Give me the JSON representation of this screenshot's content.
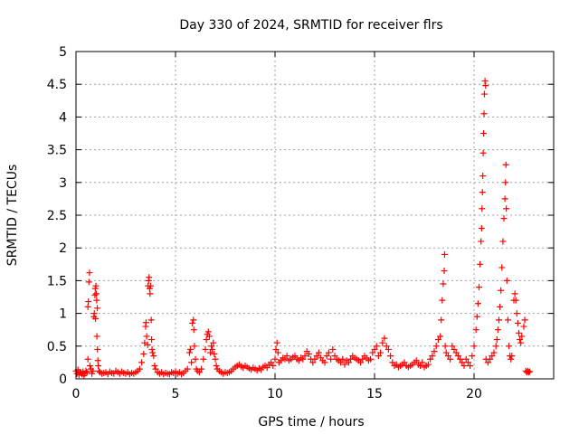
{
  "chart_data": {
    "type": "scatter",
    "title": "Day 330 of 2024, SRMTID for receiver flrs",
    "xlabel": "GPS time / hours",
    "ylabel": "SRMTID / TECUs",
    "xlim": [
      0,
      24
    ],
    "ylim": [
      0,
      5
    ],
    "xticks": [
      0,
      5,
      10,
      15,
      20
    ],
    "yticks": [
      0,
      0.5,
      1,
      1.5,
      2,
      2.5,
      3,
      3.5,
      4,
      4.5,
      5
    ],
    "grid": true,
    "marker": "plus",
    "marker_color": "#ff0000",
    "series": [
      {
        "points": [
          [
            0.0,
            0.12
          ],
          [
            0.05,
            0.08
          ],
          [
            0.1,
            0.14
          ],
          [
            0.15,
            0.06
          ],
          [
            0.2,
            0.1
          ],
          [
            0.25,
            0.09
          ],
          [
            0.3,
            0.07
          ],
          [
            0.35,
            0.11
          ],
          [
            0.4,
            0.05
          ],
          [
            0.45,
            0.08
          ],
          [
            0.5,
            0.12
          ],
          [
            0.55,
            0.1
          ],
          [
            0.6,
            0.3
          ],
          [
            0.6,
            1.1
          ],
          [
            0.62,
            1.18
          ],
          [
            0.65,
            1.48
          ],
          [
            0.68,
            1.62
          ],
          [
            0.7,
            0.2
          ],
          [
            0.75,
            0.15
          ],
          [
            0.8,
            0.08
          ],
          [
            0.85,
            0.12
          ],
          [
            0.9,
            0.95
          ],
          [
            0.92,
            1.0
          ],
          [
            0.95,
            1.28
          ],
          [
            0.97,
            1.38
          ],
          [
            0.98,
            0.92
          ],
          [
            1.0,
            1.42
          ],
          [
            1.02,
            1.3
          ],
          [
            1.04,
            1.2
          ],
          [
            1.05,
            0.65
          ],
          [
            1.07,
            1.08
          ],
          [
            1.08,
            0.45
          ],
          [
            1.1,
            0.28
          ],
          [
            1.12,
            0.2
          ],
          [
            1.15,
            0.12
          ],
          [
            1.2,
            0.1
          ],
          [
            1.3,
            0.08
          ],
          [
            1.4,
            0.09
          ],
          [
            1.5,
            0.1
          ],
          [
            1.6,
            0.07
          ],
          [
            1.7,
            0.11
          ],
          [
            1.8,
            0.09
          ],
          [
            1.9,
            0.08
          ],
          [
            2.0,
            0.12
          ],
          [
            2.1,
            0.1
          ],
          [
            2.2,
            0.08
          ],
          [
            2.3,
            0.11
          ],
          [
            2.4,
            0.09
          ],
          [
            2.5,
            0.08
          ],
          [
            2.6,
            0.1
          ],
          [
            2.7,
            0.07
          ],
          [
            2.8,
            0.09
          ],
          [
            2.9,
            0.08
          ],
          [
            3.0,
            0.1
          ],
          [
            3.1,
            0.12
          ],
          [
            3.2,
            0.15
          ],
          [
            3.3,
            0.25
          ],
          [
            3.4,
            0.38
          ],
          [
            3.45,
            0.55
          ],
          [
            3.5,
            0.8
          ],
          [
            3.52,
            0.86
          ],
          [
            3.55,
            0.65
          ],
          [
            3.6,
            0.52
          ],
          [
            3.62,
            1.42
          ],
          [
            3.65,
            1.5
          ],
          [
            3.67,
            1.55
          ],
          [
            3.7,
            1.38
          ],
          [
            3.72,
            1.3
          ],
          [
            3.75,
            1.42
          ],
          [
            3.78,
            0.9
          ],
          [
            3.8,
            0.6
          ],
          [
            3.82,
            0.45
          ],
          [
            3.85,
            0.4
          ],
          [
            3.9,
            0.35
          ],
          [
            3.95,
            0.2
          ],
          [
            4.0,
            0.15
          ],
          [
            4.1,
            0.1
          ],
          [
            4.2,
            0.08
          ],
          [
            4.3,
            0.1
          ],
          [
            4.4,
            0.07
          ],
          [
            4.5,
            0.09
          ],
          [
            4.6,
            0.08
          ],
          [
            4.7,
            0.07
          ],
          [
            4.8,
            0.1
          ],
          [
            4.9,
            0.09
          ],
          [
            5.0,
            0.11
          ],
          [
            5.1,
            0.08
          ],
          [
            5.2,
            0.1
          ],
          [
            5.3,
            0.07
          ],
          [
            5.4,
            0.09
          ],
          [
            5.5,
            0.12
          ],
          [
            5.6,
            0.15
          ],
          [
            5.7,
            0.4
          ],
          [
            5.75,
            0.45
          ],
          [
            5.8,
            0.25
          ],
          [
            5.85,
            0.85
          ],
          [
            5.9,
            0.9
          ],
          [
            5.92,
            0.75
          ],
          [
            5.95,
            0.5
          ],
          [
            6.0,
            0.3
          ],
          [
            6.05,
            0.15
          ],
          [
            6.1,
            0.12
          ],
          [
            6.2,
            0.1
          ],
          [
            6.3,
            0.15
          ],
          [
            6.4,
            0.3
          ],
          [
            6.5,
            0.45
          ],
          [
            6.55,
            0.6
          ],
          [
            6.6,
            0.68
          ],
          [
            6.65,
            0.72
          ],
          [
            6.7,
            0.65
          ],
          [
            6.75,
            0.4
          ],
          [
            6.8,
            0.5
          ],
          [
            6.85,
            0.45
          ],
          [
            6.9,
            0.55
          ],
          [
            6.95,
            0.38
          ],
          [
            7.0,
            0.3
          ],
          [
            7.05,
            0.2
          ],
          [
            7.1,
            0.15
          ],
          [
            7.2,
            0.12
          ],
          [
            7.3,
            0.1
          ],
          [
            7.4,
            0.08
          ],
          [
            7.5,
            0.1
          ],
          [
            7.6,
            0.09
          ],
          [
            7.7,
            0.1
          ],
          [
            7.8,
            0.12
          ],
          [
            7.9,
            0.15
          ],
          [
            8.0,
            0.18
          ],
          [
            8.1,
            0.2
          ],
          [
            8.2,
            0.22
          ],
          [
            8.3,
            0.19
          ],
          [
            8.4,
            0.17
          ],
          [
            8.5,
            0.2
          ],
          [
            8.6,
            0.18
          ],
          [
            8.7,
            0.16
          ],
          [
            8.8,
            0.14
          ],
          [
            8.9,
            0.17
          ],
          [
            9.0,
            0.15
          ],
          [
            9.1,
            0.13
          ],
          [
            9.2,
            0.16
          ],
          [
            9.3,
            0.14
          ],
          [
            9.4,
            0.18
          ],
          [
            9.5,
            0.2
          ],
          [
            9.6,
            0.17
          ],
          [
            9.7,
            0.22
          ],
          [
            9.8,
            0.25
          ],
          [
            9.9,
            0.2
          ],
          [
            10.0,
            0.3
          ],
          [
            10.05,
            0.45
          ],
          [
            10.1,
            0.55
          ],
          [
            10.15,
            0.4
          ],
          [
            10.2,
            0.25
          ],
          [
            10.3,
            0.28
          ],
          [
            10.4,
            0.32
          ],
          [
            10.5,
            0.3
          ],
          [
            10.6,
            0.35
          ],
          [
            10.7,
            0.28
          ],
          [
            10.8,
            0.3
          ],
          [
            10.9,
            0.33
          ],
          [
            11.0,
            0.35
          ],
          [
            11.1,
            0.3
          ],
          [
            11.2,
            0.28
          ],
          [
            11.3,
            0.32
          ],
          [
            11.4,
            0.3
          ],
          [
            11.5,
            0.35
          ],
          [
            11.6,
            0.42
          ],
          [
            11.7,
            0.38
          ],
          [
            11.8,
            0.3
          ],
          [
            11.9,
            0.25
          ],
          [
            12.0,
            0.3
          ],
          [
            12.1,
            0.35
          ],
          [
            12.2,
            0.4
          ],
          [
            12.3,
            0.32
          ],
          [
            12.4,
            0.28
          ],
          [
            12.5,
            0.25
          ],
          [
            12.6,
            0.35
          ],
          [
            12.7,
            0.4
          ],
          [
            12.8,
            0.3
          ],
          [
            12.9,
            0.45
          ],
          [
            13.0,
            0.35
          ],
          [
            13.1,
            0.3
          ],
          [
            13.2,
            0.28
          ],
          [
            13.3,
            0.25
          ],
          [
            13.4,
            0.3
          ],
          [
            13.5,
            0.22
          ],
          [
            13.6,
            0.28
          ],
          [
            13.7,
            0.25
          ],
          [
            13.8,
            0.3
          ],
          [
            13.9,
            0.35
          ],
          [
            14.0,
            0.32
          ],
          [
            14.1,
            0.3
          ],
          [
            14.2,
            0.28
          ],
          [
            14.3,
            0.25
          ],
          [
            14.4,
            0.3
          ],
          [
            14.5,
            0.35
          ],
          [
            14.6,
            0.32
          ],
          [
            14.7,
            0.28
          ],
          [
            14.8,
            0.3
          ],
          [
            14.9,
            0.4
          ],
          [
            15.0,
            0.45
          ],
          [
            15.1,
            0.5
          ],
          [
            15.2,
            0.35
          ],
          [
            15.3,
            0.4
          ],
          [
            15.4,
            0.55
          ],
          [
            15.5,
            0.62
          ],
          [
            15.6,
            0.5
          ],
          [
            15.7,
            0.45
          ],
          [
            15.8,
            0.35
          ],
          [
            15.9,
            0.25
          ],
          [
            16.0,
            0.2
          ],
          [
            16.1,
            0.22
          ],
          [
            16.2,
            0.18
          ],
          [
            16.3,
            0.2
          ],
          [
            16.4,
            0.22
          ],
          [
            16.5,
            0.25
          ],
          [
            16.6,
            0.2
          ],
          [
            16.7,
            0.18
          ],
          [
            16.8,
            0.2
          ],
          [
            16.9,
            0.22
          ],
          [
            17.0,
            0.25
          ],
          [
            17.1,
            0.28
          ],
          [
            17.2,
            0.22
          ],
          [
            17.3,
            0.2
          ],
          [
            17.4,
            0.25
          ],
          [
            17.5,
            0.18
          ],
          [
            17.6,
            0.2
          ],
          [
            17.7,
            0.22
          ],
          [
            17.8,
            0.3
          ],
          [
            17.9,
            0.35
          ],
          [
            18.0,
            0.42
          ],
          [
            18.1,
            0.5
          ],
          [
            18.2,
            0.6
          ],
          [
            18.3,
            0.65
          ],
          [
            18.35,
            0.9
          ],
          [
            18.4,
            1.2
          ],
          [
            18.45,
            1.45
          ],
          [
            18.5,
            1.65
          ],
          [
            18.52,
            1.9
          ],
          [
            18.55,
            0.5
          ],
          [
            18.6,
            0.4
          ],
          [
            18.7,
            0.35
          ],
          [
            18.8,
            0.3
          ],
          [
            18.9,
            0.5
          ],
          [
            19.0,
            0.45
          ],
          [
            19.1,
            0.4
          ],
          [
            19.2,
            0.35
          ],
          [
            19.3,
            0.3
          ],
          [
            19.4,
            0.25
          ],
          [
            19.5,
            0.2
          ],
          [
            19.6,
            0.3
          ],
          [
            19.7,
            0.25
          ],
          [
            19.8,
            0.2
          ],
          [
            19.9,
            0.35
          ],
          [
            20.0,
            0.5
          ],
          [
            20.1,
            0.75
          ],
          [
            20.15,
            0.95
          ],
          [
            20.2,
            1.15
          ],
          [
            20.25,
            1.4
          ],
          [
            20.3,
            1.75
          ],
          [
            20.35,
            2.1
          ],
          [
            20.38,
            2.3
          ],
          [
            20.4,
            2.6
          ],
          [
            20.42,
            2.85
          ],
          [
            20.44,
            3.1
          ],
          [
            20.46,
            3.45
          ],
          [
            20.48,
            3.75
          ],
          [
            20.5,
            4.05
          ],
          [
            20.52,
            4.35
          ],
          [
            20.55,
            4.55
          ],
          [
            20.58,
            4.48
          ],
          [
            20.6,
            0.3
          ],
          [
            20.7,
            0.25
          ],
          [
            20.8,
            0.3
          ],
          [
            20.9,
            0.35
          ],
          [
            21.0,
            0.4
          ],
          [
            21.1,
            0.5
          ],
          [
            21.15,
            0.6
          ],
          [
            21.2,
            0.75
          ],
          [
            21.25,
            0.9
          ],
          [
            21.3,
            1.1
          ],
          [
            21.35,
            1.35
          ],
          [
            21.4,
            1.7
          ],
          [
            21.45,
            2.1
          ],
          [
            21.5,
            2.45
          ],
          [
            21.55,
            2.75
          ],
          [
            21.58,
            3.0
          ],
          [
            21.6,
            3.27
          ],
          [
            21.62,
            2.6
          ],
          [
            21.65,
            1.5
          ],
          [
            21.7,
            0.9
          ],
          [
            21.75,
            0.5
          ],
          [
            21.8,
            0.35
          ],
          [
            21.85,
            0.3
          ],
          [
            21.9,
            0.35
          ],
          [
            22.0,
            1.2
          ],
          [
            22.05,
            1.3
          ],
          [
            22.1,
            1.2
          ],
          [
            22.15,
            1.0
          ],
          [
            22.2,
            0.85
          ],
          [
            22.25,
            0.7
          ],
          [
            22.3,
            0.6
          ],
          [
            22.35,
            0.55
          ],
          [
            22.4,
            0.65
          ],
          [
            22.5,
            0.8
          ],
          [
            22.55,
            0.9
          ],
          [
            22.6,
            0.12
          ],
          [
            22.65,
            0.1
          ],
          [
            22.7,
            0.12
          ],
          [
            22.75,
            0.1
          ],
          [
            22.8,
            0.11
          ]
        ]
      }
    ]
  }
}
